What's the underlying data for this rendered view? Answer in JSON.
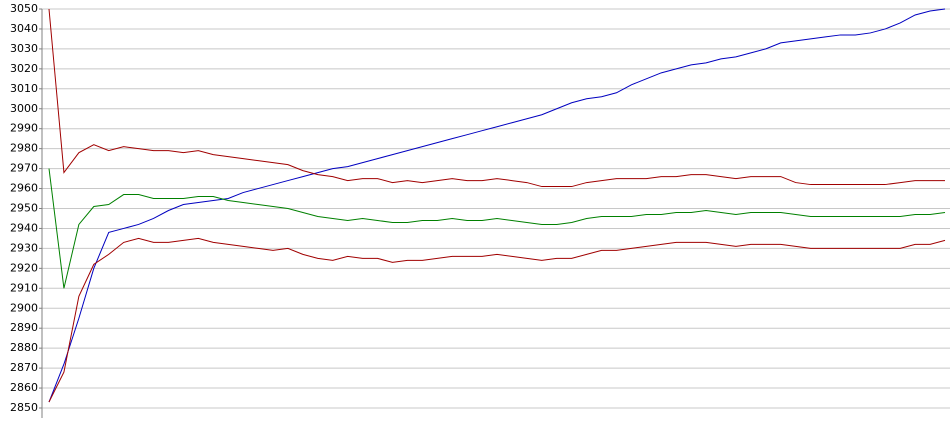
{
  "chart_data": {
    "type": "line",
    "ylim": [
      2850,
      3050
    ],
    "yticks": [
      2850,
      2860,
      2870,
      2880,
      2890,
      2900,
      2910,
      2920,
      2930,
      2940,
      2950,
      2960,
      2970,
      2980,
      2990,
      3000,
      3010,
      3020,
      3030,
      3040,
      3050
    ],
    "grid": true,
    "series": [
      {
        "color": "#0000c0",
        "values": [
          2853,
          2872,
          2895,
          2920,
          2938,
          2940,
          2942,
          2945,
          2949,
          2952,
          2953,
          2954,
          2955,
          2958,
          2960,
          2962,
          2964,
          2966,
          2968,
          2970,
          2971,
          2973,
          2975,
          2977,
          2979,
          2981,
          2983,
          2985,
          2987,
          2989,
          2991,
          2993,
          2995,
          2997,
          3000,
          3003,
          3005,
          3006,
          3008,
          3012,
          3015,
          3018,
          3020,
          3022,
          3023,
          3025,
          3026,
          3028,
          3030,
          3033,
          3034,
          3035,
          3036,
          3037,
          3037,
          3038,
          3040,
          3043,
          3047,
          3049,
          3050
        ]
      },
      {
        "color": "#a00000",
        "values": [
          3050,
          2968,
          2978,
          2982,
          2979,
          2981,
          2980,
          2979,
          2979,
          2978,
          2979,
          2977,
          2976,
          2975,
          2974,
          2973,
          2972,
          2969,
          2967,
          2966,
          2964,
          2965,
          2965,
          2963,
          2964,
          2963,
          2964,
          2965,
          2964,
          2964,
          2965,
          2964,
          2963,
          2961,
          2961,
          2961,
          2963,
          2964,
          2965,
          2965,
          2965,
          2966,
          2966,
          2967,
          2967,
          2966,
          2965,
          2966,
          2966,
          2966,
          2963,
          2962,
          2962,
          2962,
          2962,
          2962,
          2962,
          2963,
          2964,
          2964,
          2964
        ]
      },
      {
        "color": "#008000",
        "values": [
          2970,
          2910,
          2942,
          2951,
          2952,
          2957,
          2957,
          2955,
          2955,
          2955,
          2956,
          2956,
          2954,
          2953,
          2952,
          2951,
          2950,
          2948,
          2946,
          2945,
          2944,
          2945,
          2944,
          2943,
          2943,
          2944,
          2944,
          2945,
          2944,
          2944,
          2945,
          2944,
          2943,
          2942,
          2942,
          2943,
          2945,
          2946,
          2946,
          2946,
          2947,
          2947,
          2948,
          2948,
          2949,
          2948,
          2947,
          2948,
          2948,
          2948,
          2947,
          2946,
          2946,
          2946,
          2946,
          2946,
          2946,
          2946,
          2947,
          2947,
          2948
        ]
      },
      {
        "color": "#a00000",
        "values": [
          2853,
          2868,
          2906,
          2922,
          2927,
          2933,
          2935,
          2933,
          2933,
          2934,
          2935,
          2933,
          2932,
          2931,
          2930,
          2929,
          2930,
          2927,
          2925,
          2924,
          2926,
          2925,
          2925,
          2923,
          2924,
          2924,
          2925,
          2926,
          2926,
          2926,
          2927,
          2926,
          2925,
          2924,
          2925,
          2925,
          2927,
          2929,
          2929,
          2930,
          2931,
          2932,
          2933,
          2933,
          2933,
          2932,
          2931,
          2932,
          2932,
          2932,
          2931,
          2930,
          2930,
          2930,
          2930,
          2930,
          2930,
          2930,
          2932,
          2932,
          2934
        ]
      }
    ]
  }
}
